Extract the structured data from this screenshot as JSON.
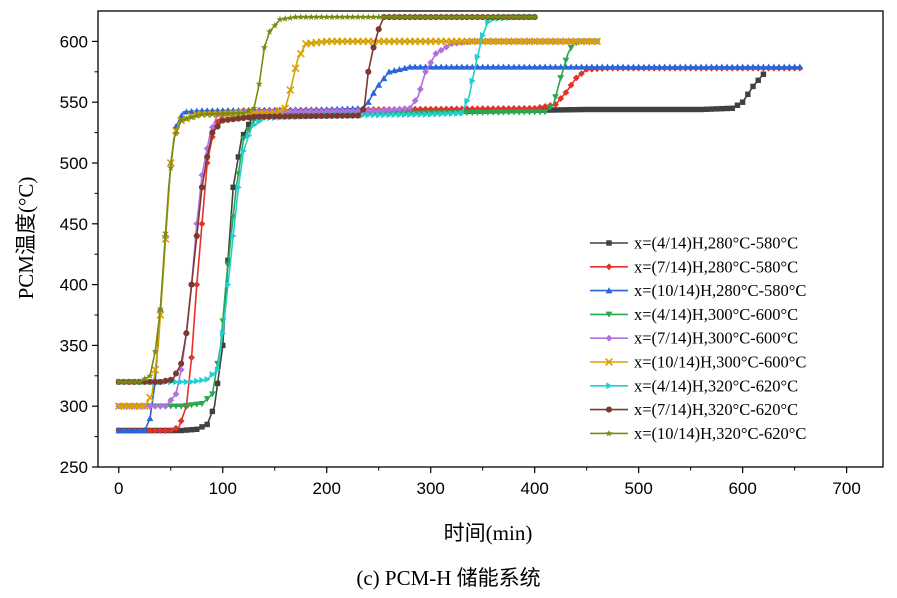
{
  "chart_data": {
    "type": "line",
    "xlabel": "时间(min)",
    "ylabel": "PCM温度(°C)",
    "xlim": [
      -20,
      735
    ],
    "ylim": [
      250,
      625
    ],
    "xticks": [
      0,
      100,
      200,
      300,
      400,
      500,
      600,
      700
    ],
    "yticks": [
      250,
      300,
      350,
      400,
      450,
      500,
      550,
      600
    ],
    "grid": false,
    "legend_position": "right",
    "colors": {
      "s1": "#404040",
      "s2": "#e8302a",
      "s3": "#2a66d8",
      "s4": "#2aa850",
      "s5": "#b070e0",
      "s6": "#d8a000",
      "s7": "#20cfd0",
      "s8": "#7a3a30",
      "s9": "#7a8a10"
    },
    "series": [
      {
        "name": "x=(4/14)H,280°C-580°C",
        "color": "#404040",
        "marker": "square",
        "points": [
          [
            0,
            280
          ],
          [
            60,
            280
          ],
          [
            75,
            281
          ],
          [
            85,
            285
          ],
          [
            92,
            300
          ],
          [
            100,
            350
          ],
          [
            105,
            420
          ],
          [
            110,
            480
          ],
          [
            118,
            520
          ],
          [
            130,
            540
          ],
          [
            150,
            542
          ],
          [
            300,
            542
          ],
          [
            450,
            544
          ],
          [
            560,
            544
          ],
          [
            590,
            545
          ],
          [
            600,
            550
          ],
          [
            610,
            563
          ],
          [
            615,
            568
          ],
          [
            620,
            573
          ]
        ]
      },
      {
        "name": "x=(7/14)H,280°C-580°C",
        "color": "#e8302a",
        "marker": "diamond",
        "points": [
          [
            0,
            280
          ],
          [
            50,
            280
          ],
          [
            58,
            283
          ],
          [
            65,
            300
          ],
          [
            70,
            340
          ],
          [
            75,
            400
          ],
          [
            80,
            450
          ],
          [
            85,
            500
          ],
          [
            92,
            530
          ],
          [
            100,
            540
          ],
          [
            120,
            543
          ],
          [
            250,
            544
          ],
          [
            400,
            545
          ],
          [
            420,
            548
          ],
          [
            430,
            558
          ],
          [
            440,
            570
          ],
          [
            450,
            577
          ],
          [
            470,
            578
          ],
          [
            657,
            578
          ]
        ]
      },
      {
        "name": "x=(10/14)H,280°C-580°C",
        "color": "#2a66d8",
        "marker": "triangle",
        "points": [
          [
            0,
            280
          ],
          [
            25,
            280
          ],
          [
            30,
            290
          ],
          [
            35,
            320
          ],
          [
            40,
            380
          ],
          [
            45,
            440
          ],
          [
            50,
            500
          ],
          [
            55,
            530
          ],
          [
            62,
            542
          ],
          [
            80,
            543
          ],
          [
            200,
            544
          ],
          [
            235,
            545
          ],
          [
            240,
            550
          ],
          [
            248,
            562
          ],
          [
            260,
            575
          ],
          [
            280,
            579
          ],
          [
            400,
            579
          ],
          [
            657,
            579
          ]
        ]
      },
      {
        "name": "x=(4/14)H,300°C-600°C",
        "color": "#2aa850",
        "marker": "triangle-down",
        "points": [
          [
            0,
            300
          ],
          [
            60,
            300
          ],
          [
            80,
            302
          ],
          [
            90,
            310
          ],
          [
            98,
            350
          ],
          [
            103,
            400
          ],
          [
            108,
            440
          ],
          [
            113,
            480
          ],
          [
            120,
            520
          ],
          [
            130,
            535
          ],
          [
            150,
            540
          ],
          [
            300,
            541
          ],
          [
            410,
            542
          ],
          [
            418,
            548
          ],
          [
            425,
            570
          ],
          [
            432,
            590
          ],
          [
            437,
            598
          ],
          [
            445,
            600
          ],
          [
            460,
            600
          ]
        ]
      },
      {
        "name": "x=(7/14)H,300°C-600°C",
        "color": "#b070e0",
        "marker": "diamond",
        "points": [
          [
            0,
            300
          ],
          [
            45,
            300
          ],
          [
            55,
            310
          ],
          [
            60,
            330
          ],
          [
            65,
            360
          ],
          [
            70,
            400
          ],
          [
            75,
            450
          ],
          [
            80,
            490
          ],
          [
            88,
            525
          ],
          [
            95,
            540
          ],
          [
            120,
            542
          ],
          [
            250,
            543
          ],
          [
            280,
            545
          ],
          [
            288,
            555
          ],
          [
            295,
            575
          ],
          [
            305,
            590
          ],
          [
            320,
            598
          ],
          [
            340,
            600
          ],
          [
            460,
            600
          ]
        ]
      },
      {
        "name": "x=(10/14)H,300°C-600°C",
        "color": "#d8a000",
        "marker": "x",
        "points": [
          [
            0,
            300
          ],
          [
            25,
            300
          ],
          [
            32,
            310
          ],
          [
            38,
            350
          ],
          [
            42,
            400
          ],
          [
            46,
            450
          ],
          [
            50,
            500
          ],
          [
            54,
            525
          ],
          [
            60,
            535
          ],
          [
            75,
            540
          ],
          [
            150,
            541
          ],
          [
            160,
            545
          ],
          [
            165,
            560
          ],
          [
            172,
            585
          ],
          [
            180,
            598
          ],
          [
            200,
            600
          ],
          [
            460,
            600
          ]
        ]
      },
      {
        "name": "x=(4/14)H,320°C-620°C",
        "color": "#20cfd0",
        "marker": "triangle-right",
        "points": [
          [
            0,
            320
          ],
          [
            70,
            320
          ],
          [
            85,
            322
          ],
          [
            95,
            330
          ],
          [
            100,
            360
          ],
          [
            105,
            400
          ],
          [
            110,
            440
          ],
          [
            115,
            480
          ],
          [
            120,
            510
          ],
          [
            128,
            530
          ],
          [
            140,
            537
          ],
          [
            200,
            539
          ],
          [
            300,
            540
          ],
          [
            330,
            541
          ],
          [
            337,
            555
          ],
          [
            343,
            580
          ],
          [
            350,
            605
          ],
          [
            356,
            618
          ],
          [
            380,
            620
          ],
          [
            400,
            620
          ]
        ]
      },
      {
        "name": "x=(7/14)H,320°C-620°C",
        "color": "#7a3a30",
        "marker": "circle",
        "points": [
          [
            0,
            320
          ],
          [
            40,
            320
          ],
          [
            52,
            322
          ],
          [
            60,
            335
          ],
          [
            65,
            360
          ],
          [
            70,
            400
          ],
          [
            75,
            440
          ],
          [
            80,
            480
          ],
          [
            85,
            505
          ],
          [
            90,
            525
          ],
          [
            100,
            535
          ],
          [
            130,
            538
          ],
          [
            230,
            539
          ],
          [
            236,
            545
          ],
          [
            240,
            575
          ],
          [
            245,
            595
          ],
          [
            250,
            610
          ],
          [
            255,
            620
          ],
          [
            300,
            620
          ],
          [
            400,
            620
          ]
        ]
      },
      {
        "name": "x=(10/14)H,320°C-620°C",
        "color": "#7a8a10",
        "marker": "star",
        "points": [
          [
            0,
            320
          ],
          [
            20,
            320
          ],
          [
            30,
            325
          ],
          [
            35,
            345
          ],
          [
            40,
            380
          ],
          [
            44,
            430
          ],
          [
            48,
            480
          ],
          [
            53,
            520
          ],
          [
            60,
            535
          ],
          [
            80,
            540
          ],
          [
            120,
            541
          ],
          [
            130,
            545
          ],
          [
            135,
            565
          ],
          [
            140,
            595
          ],
          [
            145,
            608
          ],
          [
            155,
            618
          ],
          [
            170,
            620
          ],
          [
            400,
            620
          ]
        ]
      }
    ]
  },
  "caption": "(c) PCM-H 储能系统"
}
